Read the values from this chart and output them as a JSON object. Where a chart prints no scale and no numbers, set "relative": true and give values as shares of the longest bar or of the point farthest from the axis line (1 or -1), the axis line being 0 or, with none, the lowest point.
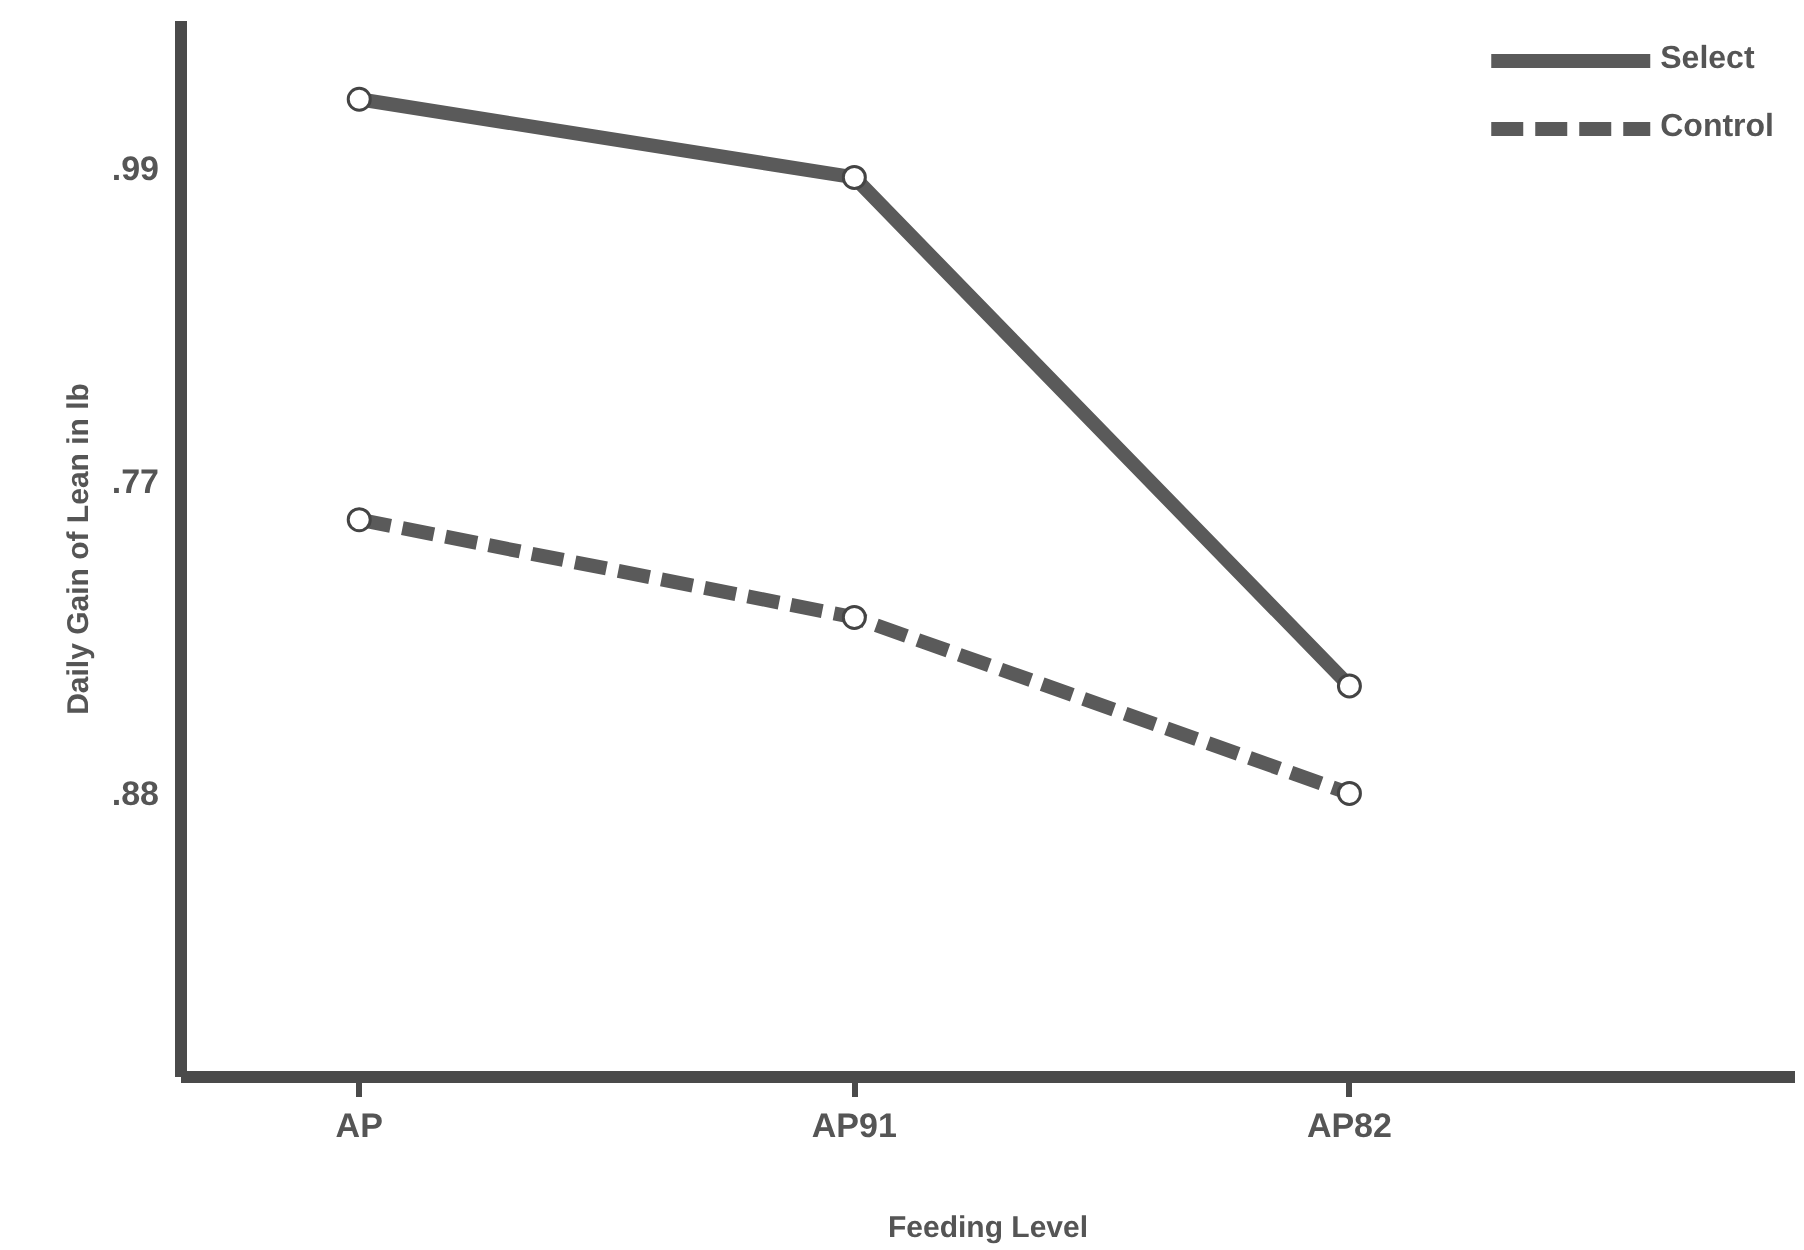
{
  "chart_data": {
    "type": "line",
    "xlabel": "Feeding Level",
    "ylabel": "Daily Gain of Lean in lb",
    "categories": [
      "AP",
      "AP91",
      "AP82"
    ],
    "relative": true,
    "series": [
      {
        "name": "Select",
        "color": "#5a5a5a",
        "line_style": "solid",
        "values": [
          1,
          0.92,
          0.4
        ]
      },
      {
        "name": "Control",
        "color": "#5a5a5a",
        "line_style": "dashed",
        "values": [
          0.57,
          0.47,
          0.29
        ]
      }
    ],
    "annotations": [
      ".99",
      ".77",
      ".88"
    ],
    "marker": "circle",
    "grid": false,
    "legend": "top right"
  }
}
